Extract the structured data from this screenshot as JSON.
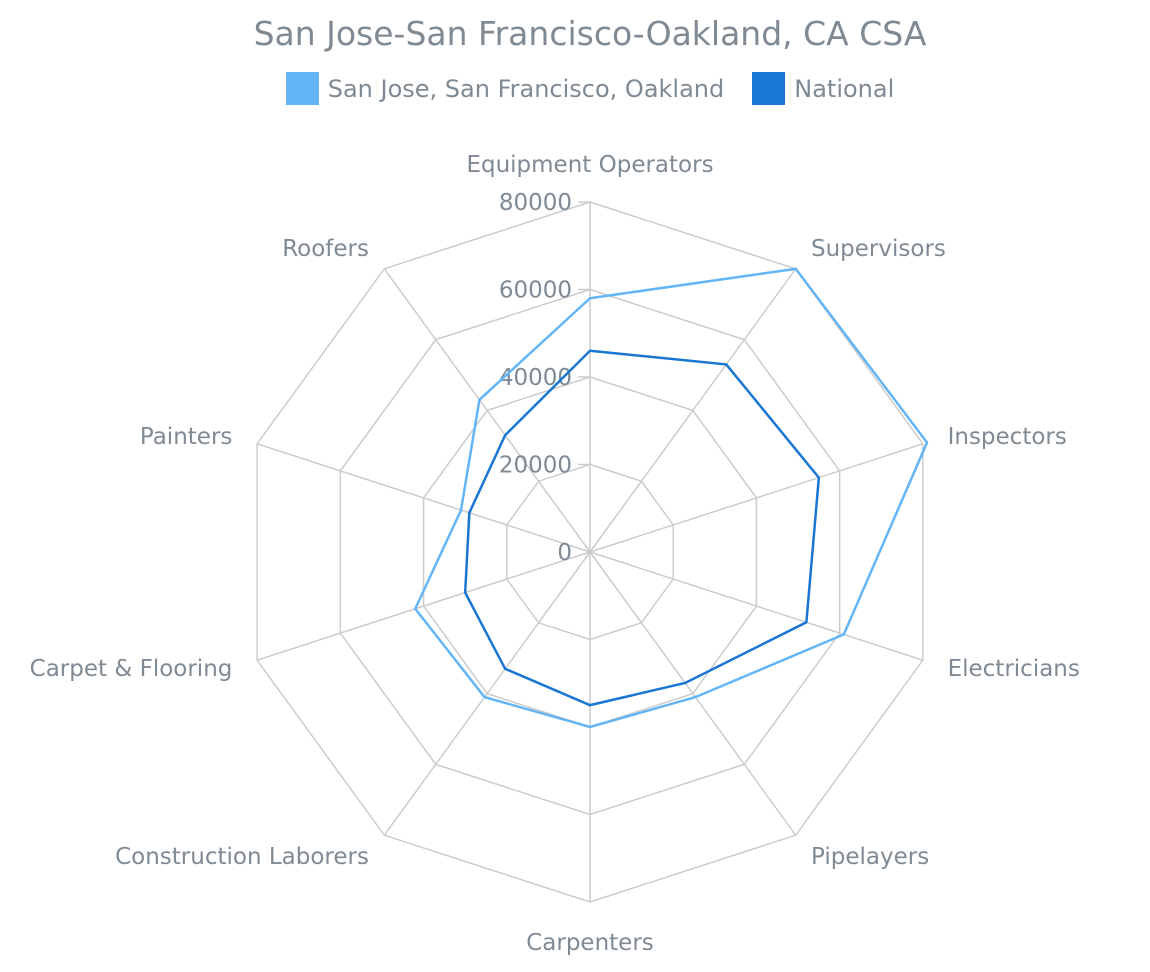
{
  "chart_data": {
    "type": "radar",
    "title": "San Jose-San Francisco-Oakland, CA CSA",
    "categories": [
      "Equipment Operators",
      "Supervisors",
      "Inspectors",
      "Electricians",
      "Pipelayers",
      "Carpenters",
      "Construction Laborers",
      "Carpet & Flooring",
      "Painters",
      "Roofers"
    ],
    "radial_axis": {
      "range": [
        0,
        80000
      ],
      "ticks": [
        0,
        20000,
        40000,
        60000,
        80000
      ],
      "tick_labels": [
        "0",
        "20000",
        "40000",
        "60000",
        "80000"
      ]
    },
    "grid": true,
    "legend_position": "top-center",
    "series": [
      {
        "name": "San Jose, San Francisco, Oakland",
        "color": "#64b5f6",
        "values": [
          58000,
          80000,
          81000,
          61000,
          41000,
          40000,
          41000,
          42000,
          31000,
          43000
        ]
      },
      {
        "name": "National",
        "color": "#1976d2",
        "values": [
          46000,
          53000,
          55000,
          52000,
          37000,
          35000,
          33000,
          30000,
          29000,
          33000
        ]
      }
    ]
  },
  "colors": {
    "grid": "#cccccc",
    "text": "#7f8a94"
  }
}
